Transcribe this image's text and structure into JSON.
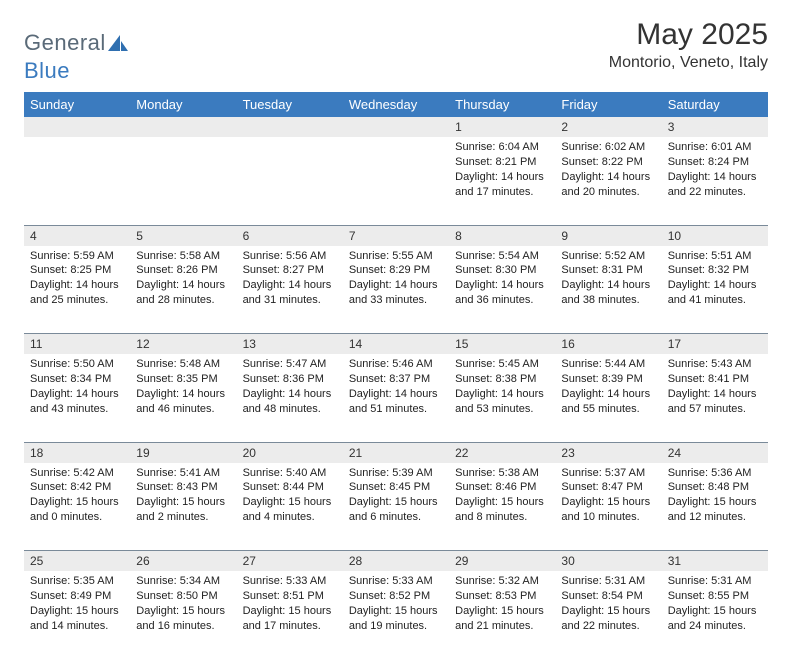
{
  "brand": {
    "part1": "General",
    "part2": "Blue"
  },
  "title": "May 2025",
  "location": "Montorio, Veneto, Italy",
  "accent_color": "#3b7bbf",
  "daynum_bg": "#ececec",
  "border_color": "#7a8a99",
  "weekdays": [
    "Sunday",
    "Monday",
    "Tuesday",
    "Wednesday",
    "Thursday",
    "Friday",
    "Saturday"
  ],
  "weeks": [
    [
      null,
      null,
      null,
      null,
      {
        "n": "1",
        "sunrise": "6:04 AM",
        "sunset": "8:21 PM",
        "dh": "14",
        "dm": "17"
      },
      {
        "n": "2",
        "sunrise": "6:02 AM",
        "sunset": "8:22 PM",
        "dh": "14",
        "dm": "20"
      },
      {
        "n": "3",
        "sunrise": "6:01 AM",
        "sunset": "8:24 PM",
        "dh": "14",
        "dm": "22"
      }
    ],
    [
      {
        "n": "4",
        "sunrise": "5:59 AM",
        "sunset": "8:25 PM",
        "dh": "14",
        "dm": "25"
      },
      {
        "n": "5",
        "sunrise": "5:58 AM",
        "sunset": "8:26 PM",
        "dh": "14",
        "dm": "28"
      },
      {
        "n": "6",
        "sunrise": "5:56 AM",
        "sunset": "8:27 PM",
        "dh": "14",
        "dm": "31"
      },
      {
        "n": "7",
        "sunrise": "5:55 AM",
        "sunset": "8:29 PM",
        "dh": "14",
        "dm": "33"
      },
      {
        "n": "8",
        "sunrise": "5:54 AM",
        "sunset": "8:30 PM",
        "dh": "14",
        "dm": "36"
      },
      {
        "n": "9",
        "sunrise": "5:52 AM",
        "sunset": "8:31 PM",
        "dh": "14",
        "dm": "38"
      },
      {
        "n": "10",
        "sunrise": "5:51 AM",
        "sunset": "8:32 PM",
        "dh": "14",
        "dm": "41"
      }
    ],
    [
      {
        "n": "11",
        "sunrise": "5:50 AM",
        "sunset": "8:34 PM",
        "dh": "14",
        "dm": "43"
      },
      {
        "n": "12",
        "sunrise": "5:48 AM",
        "sunset": "8:35 PM",
        "dh": "14",
        "dm": "46"
      },
      {
        "n": "13",
        "sunrise": "5:47 AM",
        "sunset": "8:36 PM",
        "dh": "14",
        "dm": "48"
      },
      {
        "n": "14",
        "sunrise": "5:46 AM",
        "sunset": "8:37 PM",
        "dh": "14",
        "dm": "51"
      },
      {
        "n": "15",
        "sunrise": "5:45 AM",
        "sunset": "8:38 PM",
        "dh": "14",
        "dm": "53"
      },
      {
        "n": "16",
        "sunrise": "5:44 AM",
        "sunset": "8:39 PM",
        "dh": "14",
        "dm": "55"
      },
      {
        "n": "17",
        "sunrise": "5:43 AM",
        "sunset": "8:41 PM",
        "dh": "14",
        "dm": "57"
      }
    ],
    [
      {
        "n": "18",
        "sunrise": "5:42 AM",
        "sunset": "8:42 PM",
        "dh": "15",
        "dm": "0"
      },
      {
        "n": "19",
        "sunrise": "5:41 AM",
        "sunset": "8:43 PM",
        "dh": "15",
        "dm": "2"
      },
      {
        "n": "20",
        "sunrise": "5:40 AM",
        "sunset": "8:44 PM",
        "dh": "15",
        "dm": "4"
      },
      {
        "n": "21",
        "sunrise": "5:39 AM",
        "sunset": "8:45 PM",
        "dh": "15",
        "dm": "6"
      },
      {
        "n": "22",
        "sunrise": "5:38 AM",
        "sunset": "8:46 PM",
        "dh": "15",
        "dm": "8"
      },
      {
        "n": "23",
        "sunrise": "5:37 AM",
        "sunset": "8:47 PM",
        "dh": "15",
        "dm": "10"
      },
      {
        "n": "24",
        "sunrise": "5:36 AM",
        "sunset": "8:48 PM",
        "dh": "15",
        "dm": "12"
      }
    ],
    [
      {
        "n": "25",
        "sunrise": "5:35 AM",
        "sunset": "8:49 PM",
        "dh": "15",
        "dm": "14"
      },
      {
        "n": "26",
        "sunrise": "5:34 AM",
        "sunset": "8:50 PM",
        "dh": "15",
        "dm": "16"
      },
      {
        "n": "27",
        "sunrise": "5:33 AM",
        "sunset": "8:51 PM",
        "dh": "15",
        "dm": "17"
      },
      {
        "n": "28",
        "sunrise": "5:33 AM",
        "sunset": "8:52 PM",
        "dh": "15",
        "dm": "19"
      },
      {
        "n": "29",
        "sunrise": "5:32 AM",
        "sunset": "8:53 PM",
        "dh": "15",
        "dm": "21"
      },
      {
        "n": "30",
        "sunrise": "5:31 AM",
        "sunset": "8:54 PM",
        "dh": "15",
        "dm": "22"
      },
      {
        "n": "31",
        "sunrise": "5:31 AM",
        "sunset": "8:55 PM",
        "dh": "15",
        "dm": "24"
      }
    ]
  ]
}
